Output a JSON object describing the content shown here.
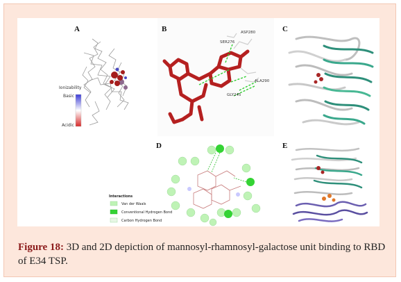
{
  "figure": {
    "panels": {
      "a": {
        "label": "A",
        "ionizability_title": "Ionizability",
        "basic_label": "Basic",
        "acidic_label": "Acidic"
      },
      "b": {
        "label": "B",
        "residues": [
          "ASP280",
          "SER276",
          "GLY245",
          "ALA290"
        ]
      },
      "c": {
        "label": "C"
      },
      "d": {
        "label": "D",
        "interactions_title": "Interactions",
        "legend": [
          "Van der Waals",
          "Conventional Hydrogen Bond",
          "Carbon Hydrogen Bond"
        ],
        "colors": {
          "vdw": "#bff3b6",
          "conventional": "#34d334",
          "carbon": "#e8f7e6"
        }
      },
      "e": {
        "label": "E"
      }
    }
  },
  "caption": {
    "label": "Figure 18:",
    "text": " 3D and 2D depiction of mannosyl-rhamnosyl-galactose unit binding to RBD of E34 TSP."
  }
}
